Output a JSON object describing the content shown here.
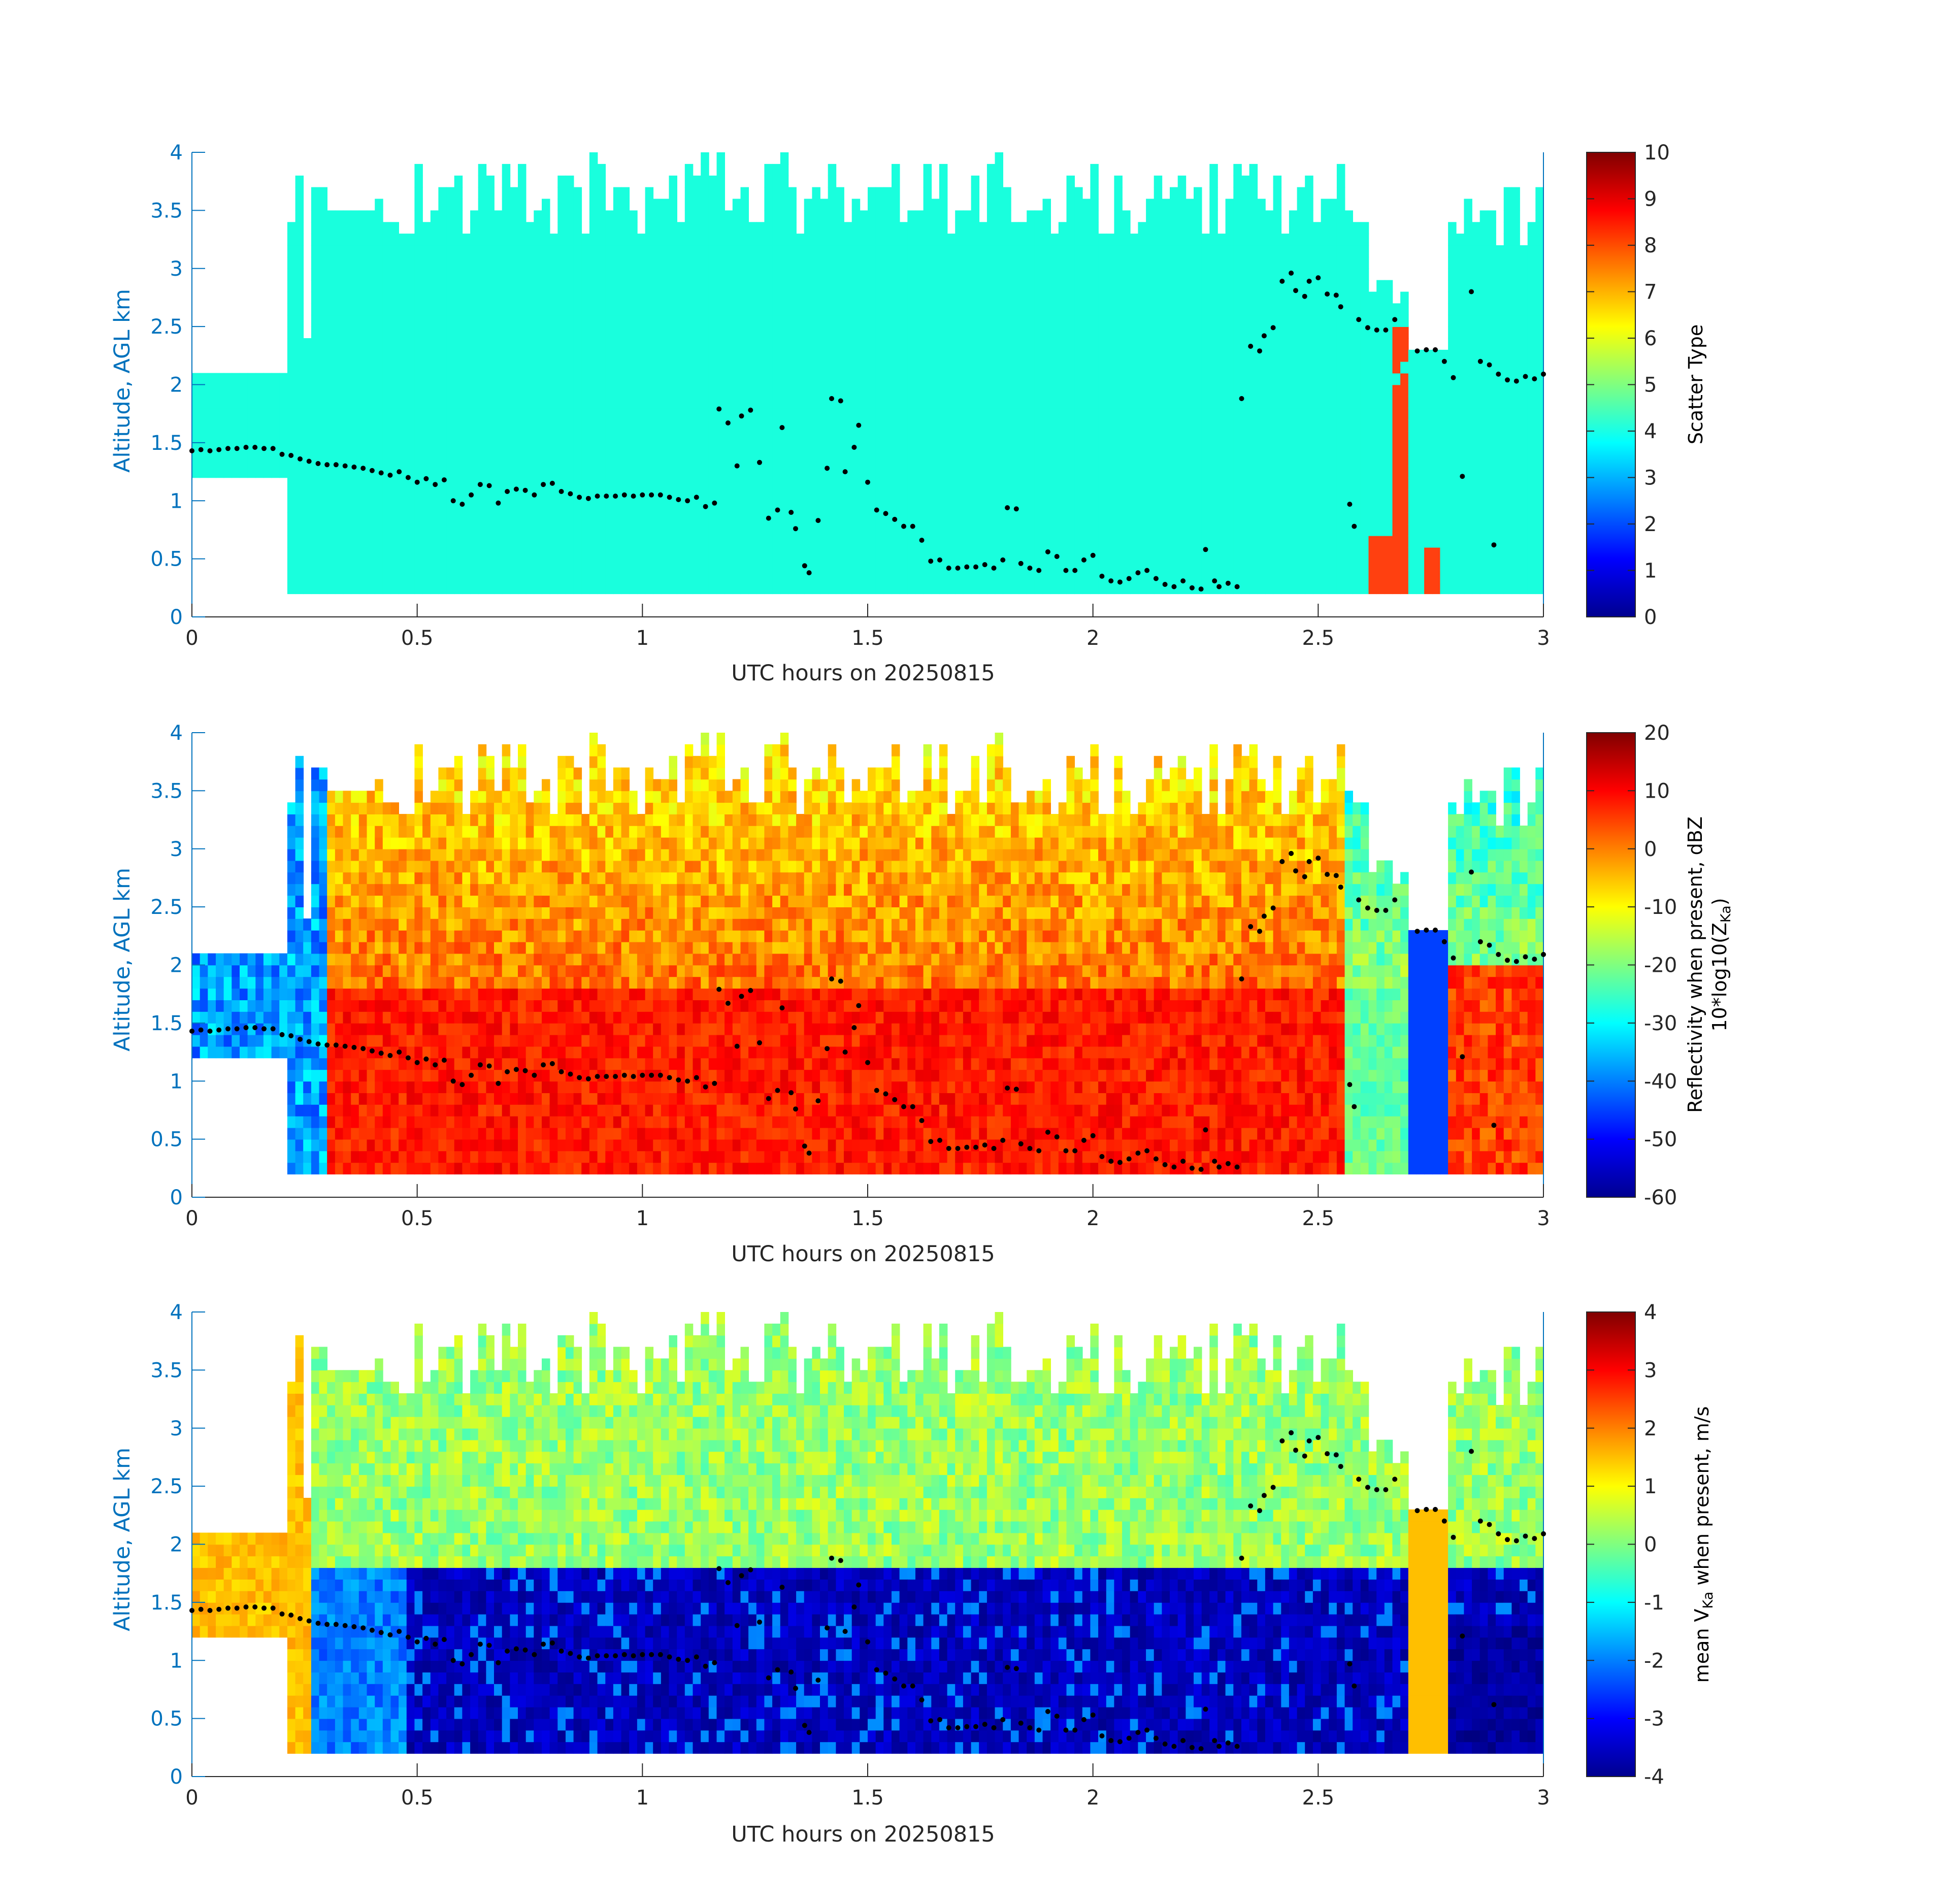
{
  "chart_data": [
    {
      "type": "heatmap",
      "xlabel": "UTC hours on 20250815",
      "ylabel": "Altitude, AGL km",
      "xlim": [
        0,
        3
      ],
      "ylim": [
        0,
        4
      ],
      "x_ticks": [
        "0",
        "0.5",
        "1",
        "1.5",
        "2",
        "2.5",
        "3"
      ],
      "y_ticks": [
        "0",
        "0.5",
        "1",
        "1.5",
        "2",
        "2.5",
        "3",
        "3.5",
        "4"
      ],
      "colorbar": {
        "label": "Scatter Type",
        "range": [
          0,
          10
        ],
        "ticks": [
          "0",
          "1",
          "2",
          "3",
          "4",
          "5",
          "6",
          "7",
          "8",
          "9",
          "10"
        ],
        "colormap": "jet"
      },
      "field_summary": {
        "dominant_value": 4,
        "dominant_color": "#19ffdd",
        "secondary_value": 8.3,
        "secondary_color": "#ff4010",
        "secondary_regions_hours": [
          [
            2.62,
            2.78
          ]
        ]
      }
    },
    {
      "type": "heatmap",
      "xlabel": "UTC hours on 20250815",
      "ylabel": "Altitude, AGL km",
      "xlim": [
        0,
        3
      ],
      "ylim": [
        0,
        4
      ],
      "x_ticks": [
        "0",
        "0.5",
        "1",
        "1.5",
        "2",
        "2.5",
        "3"
      ],
      "y_ticks": [
        "0",
        "0.5",
        "1",
        "1.5",
        "2",
        "2.5",
        "3",
        "3.5",
        "4"
      ],
      "colorbar": {
        "label_line1": "Reflectivity when present, dBZ",
        "label_line2_prefix": "10*log10(Z",
        "label_line2_sub": "Ka",
        "label_line2_suffix": ")",
        "range": [
          -60,
          20
        ],
        "ticks": [
          "-60",
          "-50",
          "-40",
          "-30",
          "-20",
          "-10",
          "0",
          "10",
          "20"
        ],
        "colormap": "jet"
      }
    },
    {
      "type": "heatmap",
      "xlabel": "UTC hours on 20250815",
      "ylabel": "Altitude, AGL km",
      "xlim": [
        0,
        3
      ],
      "ylim": [
        0,
        4
      ],
      "x_ticks": [
        "0",
        "0.5",
        "1",
        "1.5",
        "2",
        "2.5",
        "3"
      ],
      "y_ticks": [
        "0",
        "0.5",
        "1",
        "1.5",
        "2",
        "2.5",
        "3",
        "3.5",
        "4"
      ],
      "colorbar": {
        "label_prefix": "mean V",
        "label_sub": "Ka",
        "label_suffix": " when present, m/s",
        "range": [
          -4,
          4
        ],
        "ticks": [
          "-4",
          "-3",
          "-2",
          "-1",
          "0",
          "1",
          "2",
          "3",
          "4"
        ],
        "colormap": "jet"
      }
    }
  ],
  "overlay": {
    "description_color": "#000000",
    "marker": "dot",
    "points": [
      [
        0.0,
        1.43
      ],
      [
        0.02,
        1.44
      ],
      [
        0.04,
        1.43
      ],
      [
        0.06,
        1.44
      ],
      [
        0.08,
        1.45
      ],
      [
        0.1,
        1.45
      ],
      [
        0.12,
        1.46
      ],
      [
        0.14,
        1.46
      ],
      [
        0.16,
        1.45
      ],
      [
        0.18,
        1.45
      ],
      [
        0.2,
        1.4
      ],
      [
        0.22,
        1.39
      ],
      [
        0.24,
        1.36
      ],
      [
        0.26,
        1.34
      ],
      [
        0.28,
        1.32
      ],
      [
        0.3,
        1.31
      ],
      [
        0.32,
        1.31
      ],
      [
        0.34,
        1.3
      ],
      [
        0.36,
        1.29
      ],
      [
        0.38,
        1.28
      ],
      [
        0.4,
        1.26
      ],
      [
        0.42,
        1.24
      ],
      [
        0.44,
        1.22
      ],
      [
        0.46,
        1.25
      ],
      [
        0.48,
        1.2
      ],
      [
        0.5,
        1.16
      ],
      [
        0.52,
        1.19
      ],
      [
        0.54,
        1.14
      ],
      [
        0.56,
        1.18
      ],
      [
        0.58,
        1.0
      ],
      [
        0.6,
        0.97
      ],
      [
        0.62,
        1.05
      ],
      [
        0.64,
        1.14
      ],
      [
        0.66,
        1.13
      ],
      [
        0.68,
        0.98
      ],
      [
        0.7,
        1.08
      ],
      [
        0.72,
        1.1
      ],
      [
        0.74,
        1.09
      ],
      [
        0.76,
        1.05
      ],
      [
        0.78,
        1.14
      ],
      [
        0.8,
        1.15
      ],
      [
        0.82,
        1.08
      ],
      [
        0.84,
        1.06
      ],
      [
        0.86,
        1.03
      ],
      [
        0.88,
        1.02
      ],
      [
        0.9,
        1.04
      ],
      [
        0.92,
        1.04
      ],
      [
        0.94,
        1.04
      ],
      [
        0.96,
        1.05
      ],
      [
        0.98,
        1.04
      ],
      [
        1.0,
        1.05
      ],
      [
        1.02,
        1.05
      ],
      [
        1.04,
        1.05
      ],
      [
        1.06,
        1.03
      ],
      [
        1.08,
        1.01
      ],
      [
        1.1,
        1.0
      ],
      [
        1.12,
        1.03
      ],
      [
        1.14,
        0.95
      ],
      [
        1.16,
        0.98
      ],
      [
        1.17,
        1.79
      ],
      [
        1.19,
        1.67
      ],
      [
        1.21,
        1.3
      ],
      [
        1.22,
        1.73
      ],
      [
        1.24,
        1.78
      ],
      [
        1.26,
        1.33
      ],
      [
        1.28,
        0.85
      ],
      [
        1.3,
        0.92
      ],
      [
        1.31,
        1.63
      ],
      [
        1.33,
        0.9
      ],
      [
        1.34,
        0.76
      ],
      [
        1.36,
        0.44
      ],
      [
        1.37,
        0.38
      ],
      [
        1.39,
        0.83
      ],
      [
        1.41,
        1.28
      ],
      [
        1.42,
        1.88
      ],
      [
        1.44,
        1.86
      ],
      [
        1.45,
        1.25
      ],
      [
        1.47,
        1.46
      ],
      [
        1.48,
        1.65
      ],
      [
        1.5,
        1.16
      ],
      [
        1.52,
        0.92
      ],
      [
        1.54,
        0.89
      ],
      [
        1.56,
        0.84
      ],
      [
        1.58,
        0.78
      ],
      [
        1.6,
        0.78
      ],
      [
        1.62,
        0.66
      ],
      [
        1.64,
        0.48
      ],
      [
        1.66,
        0.49
      ],
      [
        1.68,
        0.42
      ],
      [
        1.7,
        0.42
      ],
      [
        1.72,
        0.43
      ],
      [
        1.74,
        0.43
      ],
      [
        1.76,
        0.45
      ],
      [
        1.78,
        0.42
      ],
      [
        1.8,
        0.49
      ],
      [
        1.81,
        0.94
      ],
      [
        1.83,
        0.93
      ],
      [
        1.84,
        0.46
      ],
      [
        1.86,
        0.42
      ],
      [
        1.88,
        0.4
      ],
      [
        1.9,
        0.56
      ],
      [
        1.92,
        0.52
      ],
      [
        1.94,
        0.4
      ],
      [
        1.96,
        0.4
      ],
      [
        1.98,
        0.49
      ],
      [
        2.0,
        0.53
      ],
      [
        2.02,
        0.35
      ],
      [
        2.04,
        0.31
      ],
      [
        2.06,
        0.3
      ],
      [
        2.08,
        0.33
      ],
      [
        2.1,
        0.38
      ],
      [
        2.12,
        0.4
      ],
      [
        2.14,
        0.33
      ],
      [
        2.16,
        0.28
      ],
      [
        2.18,
        0.26
      ],
      [
        2.2,
        0.31
      ],
      [
        2.22,
        0.25
      ],
      [
        2.24,
        0.24
      ],
      [
        2.25,
        0.58
      ],
      [
        2.27,
        0.31
      ],
      [
        2.28,
        0.26
      ],
      [
        2.3,
        0.29
      ],
      [
        2.32,
        0.26
      ],
      [
        2.33,
        1.88
      ],
      [
        2.35,
        2.33
      ],
      [
        2.37,
        2.29
      ],
      [
        2.38,
        2.42
      ],
      [
        2.4,
        2.49
      ],
      [
        2.42,
        2.89
      ],
      [
        2.44,
        2.96
      ],
      [
        2.45,
        2.81
      ],
      [
        2.47,
        2.76
      ],
      [
        2.48,
        2.89
      ],
      [
        2.5,
        2.92
      ],
      [
        2.52,
        2.78
      ],
      [
        2.54,
        2.77
      ],
      [
        2.55,
        2.67
      ],
      [
        2.57,
        0.97
      ],
      [
        2.58,
        0.78
      ],
      [
        2.59,
        2.56
      ],
      [
        2.61,
        2.49
      ],
      [
        2.63,
        2.47
      ],
      [
        2.65,
        2.47
      ],
      [
        2.67,
        2.56
      ],
      [
        2.72,
        2.29
      ],
      [
        2.74,
        2.3
      ],
      [
        2.76,
        2.3
      ],
      [
        2.78,
        2.2
      ],
      [
        2.8,
        2.06
      ],
      [
        2.82,
        1.21
      ],
      [
        2.84,
        2.8
      ],
      [
        2.86,
        2.2
      ],
      [
        2.88,
        2.17
      ],
      [
        2.89,
        0.62
      ],
      [
        2.9,
        2.09
      ],
      [
        2.92,
        2.04
      ],
      [
        2.94,
        2.03
      ],
      [
        2.96,
        2.07
      ],
      [
        2.98,
        2.05
      ],
      [
        3.0,
        2.09
      ]
    ]
  }
}
